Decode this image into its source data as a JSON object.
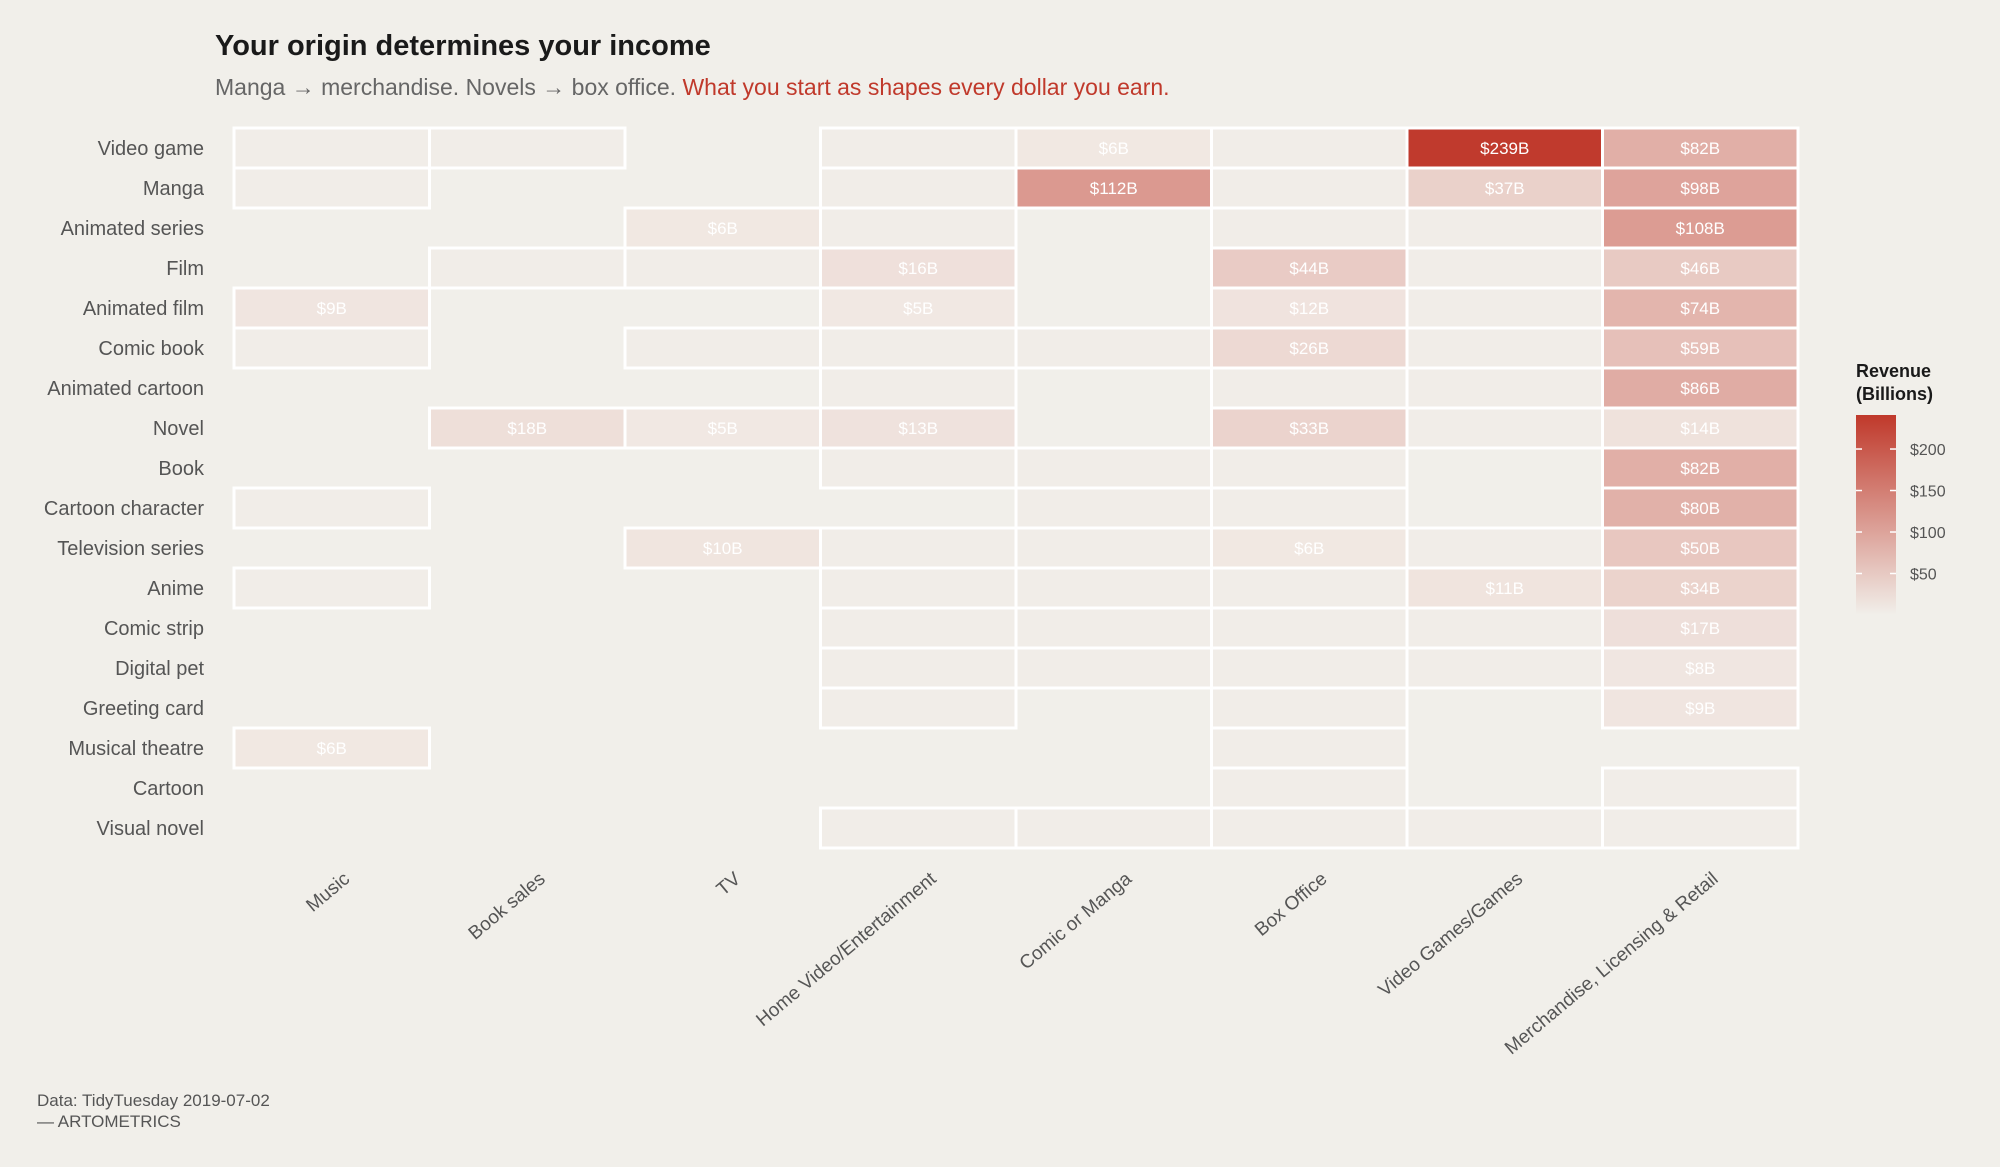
{
  "title": "Your origin determines your income",
  "subtitle_plain": "Manga → merchandise. Novels → box office. ",
  "subtitle_highlight": "What you start as shapes every dollar you earn.",
  "caption_line1": "Data: TidyTuesday 2019-07-02",
  "caption_line2": "— ARTOMETRICS",
  "colors": {
    "background": "#f1efea",
    "low": "#f2ece7",
    "high": "#c0392b",
    "empty": "#f1ede8",
    "highlight": "#c0392b"
  },
  "chart_data": {
    "type": "heatmap",
    "title": "Your origin determines your income",
    "xlabel": "",
    "ylabel": "",
    "rows": [
      "Video game",
      "Manga",
      "Animated series",
      "Film",
      "Animated film",
      "Comic book",
      "Animated cartoon",
      "Novel",
      "Book",
      "Cartoon character",
      "Television series",
      "Anime",
      "Comic strip",
      "Digital pet",
      "Greeting card",
      "Musical theatre",
      "Cartoon",
      "Visual novel"
    ],
    "columns": [
      "Music",
      "Book sales",
      "TV",
      "Home Video/Entertainment",
      "Comic or Manga",
      "Box Office",
      "Video Games/Games",
      "Merchandise, Licensing & Retail"
    ],
    "cells": [
      [
        0,
        0,
        null
      ],
      [
        0,
        1,
        null
      ],
      [
        0,
        3,
        null
      ],
      [
        0,
        4,
        6
      ],
      [
        0,
        5,
        null
      ],
      [
        0,
        6,
        239
      ],
      [
        0,
        7,
        82
      ],
      [
        1,
        0,
        null
      ],
      [
        1,
        3,
        null
      ],
      [
        1,
        4,
        112
      ],
      [
        1,
        5,
        null
      ],
      [
        1,
        6,
        37
      ],
      [
        1,
        7,
        98
      ],
      [
        2,
        2,
        6
      ],
      [
        2,
        3,
        null
      ],
      [
        2,
        5,
        null
      ],
      [
        2,
        6,
        null
      ],
      [
        2,
        7,
        108
      ],
      [
        3,
        1,
        null
      ],
      [
        3,
        2,
        null
      ],
      [
        3,
        3,
        16
      ],
      [
        3,
        5,
        44
      ],
      [
        3,
        6,
        null
      ],
      [
        3,
        7,
        46
      ],
      [
        4,
        0,
        9
      ],
      [
        4,
        3,
        5
      ],
      [
        4,
        5,
        12
      ],
      [
        4,
        6,
        null
      ],
      [
        4,
        7,
        74
      ],
      [
        5,
        0,
        null
      ],
      [
        5,
        2,
        null
      ],
      [
        5,
        3,
        null
      ],
      [
        5,
        4,
        null
      ],
      [
        5,
        5,
        26
      ],
      [
        5,
        6,
        null
      ],
      [
        5,
        7,
        59
      ],
      [
        6,
        3,
        null
      ],
      [
        6,
        5,
        null
      ],
      [
        6,
        6,
        null
      ],
      [
        6,
        7,
        86
      ],
      [
        7,
        1,
        18
      ],
      [
        7,
        2,
        5
      ],
      [
        7,
        3,
        13
      ],
      [
        7,
        5,
        33
      ],
      [
        7,
        6,
        null
      ],
      [
        7,
        7,
        14
      ],
      [
        8,
        3,
        null
      ],
      [
        8,
        4,
        null
      ],
      [
        8,
        5,
        null
      ],
      [
        8,
        7,
        82
      ],
      [
        9,
        0,
        null
      ],
      [
        9,
        4,
        null
      ],
      [
        9,
        5,
        null
      ],
      [
        9,
        7,
        80
      ],
      [
        10,
        2,
        10
      ],
      [
        10,
        3,
        null
      ],
      [
        10,
        4,
        null
      ],
      [
        10,
        5,
        6
      ],
      [
        10,
        6,
        null
      ],
      [
        10,
        7,
        50
      ],
      [
        11,
        0,
        null
      ],
      [
        11,
        3,
        null
      ],
      [
        11,
        4,
        null
      ],
      [
        11,
        5,
        null
      ],
      [
        11,
        6,
        11
      ],
      [
        11,
        7,
        34
      ],
      [
        12,
        3,
        null
      ],
      [
        12,
        4,
        null
      ],
      [
        12,
        5,
        null
      ],
      [
        12,
        6,
        null
      ],
      [
        12,
        7,
        17
      ],
      [
        13,
        3,
        null
      ],
      [
        13,
        4,
        null
      ],
      [
        13,
        5,
        null
      ],
      [
        13,
        6,
        null
      ],
      [
        13,
        7,
        8
      ],
      [
        14,
        3,
        null
      ],
      [
        14,
        5,
        null
      ],
      [
        14,
        7,
        9
      ],
      [
        15,
        0,
        6
      ],
      [
        15,
        5,
        null
      ],
      [
        16,
        5,
        null
      ],
      [
        16,
        7,
        null
      ],
      [
        17,
        3,
        null
      ],
      [
        17,
        4,
        null
      ],
      [
        17,
        5,
        null
      ],
      [
        17,
        6,
        null
      ],
      [
        17,
        7,
        null
      ]
    ],
    "value_prefix": "$",
    "value_suffix": "B",
    "legend": {
      "title_line1": "Revenue",
      "title_line2": "(Billions)",
      "ticks": [
        50,
        100,
        150,
        200
      ],
      "tick_labels": [
        "$50",
        "$100",
        "$150",
        "$200"
      ],
      "range": [
        0,
        241
      ],
      "placement": "right"
    }
  }
}
